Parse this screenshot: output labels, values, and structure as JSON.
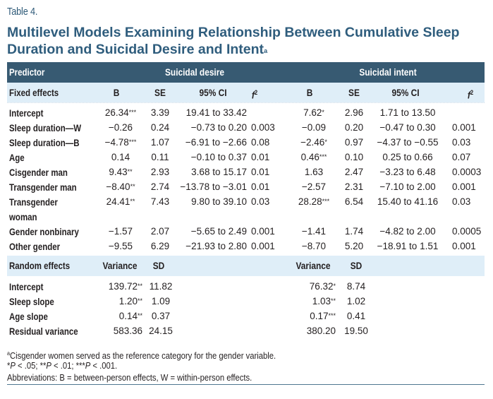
{
  "table_label": "Table 4.",
  "title": "Multilevel Models Examining Relationship Between Cumulative Sleep Duration and Suicidal Desire and Intent",
  "title_footnote_marker": "a",
  "header": {
    "predictor": "Predictor",
    "group1": "Suicidal desire",
    "group2": "Suicidal intent"
  },
  "fixed_header": {
    "label": "Fixed effects",
    "cols": [
      "B",
      "SE",
      "95% CI",
      "f",
      "B",
      "SE",
      "95% CI",
      "f"
    ],
    "f_sup": "2"
  },
  "fixed_rows": [
    {
      "label": "Intercept",
      "b1": "26.34",
      "s1": "***",
      "se1": "3.39",
      "ci1": "19.41 to 33.42",
      "f1": "",
      "b2": "7.62",
      "s2": "*",
      "se2": "2.96",
      "ci2": "1.71 to 13.50",
      "f2": ""
    },
    {
      "label": "Sleep duration—W",
      "b1": "−0.26",
      "s1": "",
      "se1": "0.24",
      "ci1": "−0.73 to 0.20",
      "f1": "0.003",
      "b2": "−0.09",
      "s2": "",
      "se2": "0.20",
      "ci2": "−0.47 to 0.30",
      "f2": "0.001"
    },
    {
      "label": "Sleep duration—B",
      "b1": "−4.78",
      "s1": "***",
      "se1": "1.07",
      "ci1": "−6.91 to −2.66",
      "f1": "0.08",
      "b2": "−2.46",
      "s2": "*",
      "se2": "0.97",
      "ci2": "−4.37 to −0.55",
      "f2": "0.03"
    },
    {
      "label": "Age",
      "b1": "0.14",
      "s1": "",
      "se1": "0.11",
      "ci1": "−0.10 to 0.37",
      "f1": "0.01",
      "b2": "0.46",
      "s2": "***",
      "se2": "0.10",
      "ci2": "0.25 to 0.66",
      "f2": "0.07"
    },
    {
      "label": "Cisgender man",
      "b1": "9.43",
      "s1": "**",
      "se1": "2.93",
      "ci1": "3.68 to 15.17",
      "f1": "0.01",
      "b2": "1.63",
      "s2": "",
      "se2": "2.47",
      "ci2": "−3.23 to 6.48",
      "f2": "0.0003"
    },
    {
      "label": "Transgender man",
      "b1": "−8.40",
      "s1": "**",
      "se1": "2.74",
      "ci1": "−13.78 to −3.01",
      "f1": "0.01",
      "b2": "−2.57",
      "s2": "",
      "se2": "2.31",
      "ci2": "−7.10 to 2.00",
      "f2": "0.001"
    },
    {
      "label": "Transgender",
      "label2": "woman",
      "b1": "24.41",
      "s1": "**",
      "se1": "7.43",
      "ci1": "9.80 to 39.10",
      "f1": "0.03",
      "b2": "28.28",
      "s2": "***",
      "se2": "6.54",
      "ci2": "15.40 to 41.16",
      "f2": "0.03"
    },
    {
      "label": "Gender nonbinary",
      "b1": "−1.57",
      "s1": "",
      "se1": "2.07",
      "ci1": "−5.65 to 2.49",
      "f1": "0.001",
      "b2": "−1.41",
      "s2": "",
      "se2": "1.74",
      "ci2": "−4.82 to 2.00",
      "f2": "0.0005"
    },
    {
      "label": "Other gender",
      "b1": "−9.55",
      "s1": "",
      "se1": "6.29",
      "ci1": "−21.93 to 2.80",
      "f1": "0.001",
      "b2": "−8.70",
      "s2": "",
      "se2": "5.20",
      "ci2": "−18.91 to 1.51",
      "f2": "0.001"
    }
  ],
  "random_header": {
    "label": "Random effects",
    "var1": "Variance",
    "sd1": "SD",
    "var2": "Variance",
    "sd2": "SD"
  },
  "random_rows": [
    {
      "label": "Intercept",
      "v1": "139.72",
      "s1": "**",
      "sd1": "11.82",
      "v2": "76.32",
      "s2": "*",
      "sd2": "8.74"
    },
    {
      "label": "Sleep slope",
      "v1": "1.20",
      "s1": "**",
      "sd1": "1.09",
      "v2": "1.03",
      "s2": "**",
      "sd2": "1.02"
    },
    {
      "label": "Age slope",
      "v1": "0.14",
      "s1": "**",
      "sd1": "0.37",
      "v2": "0.17",
      "s2": "***",
      "sd2": "0.41"
    },
    {
      "label": "Residual variance",
      "v1": "583.36",
      "s1": "",
      "sd1": "24.15",
      "v2": "380.20",
      "s2": "",
      "sd2": "19.50"
    }
  ],
  "footnotes": {
    "a_marker": "a",
    "a_text": "Cisgender women served as the reference category for the gender variable.",
    "p1_star": "*",
    "p1_text": "P",
    "p1_rest": " < .05; ",
    "p2_star": "**",
    "p2_text": "P",
    "p2_rest": " < .01; ",
    "p3_star": "***",
    "p3_text": "P",
    "p3_rest": " < .001.",
    "abbrev": "Abbreviations: B = between-person effects, W = within-person effects."
  }
}
